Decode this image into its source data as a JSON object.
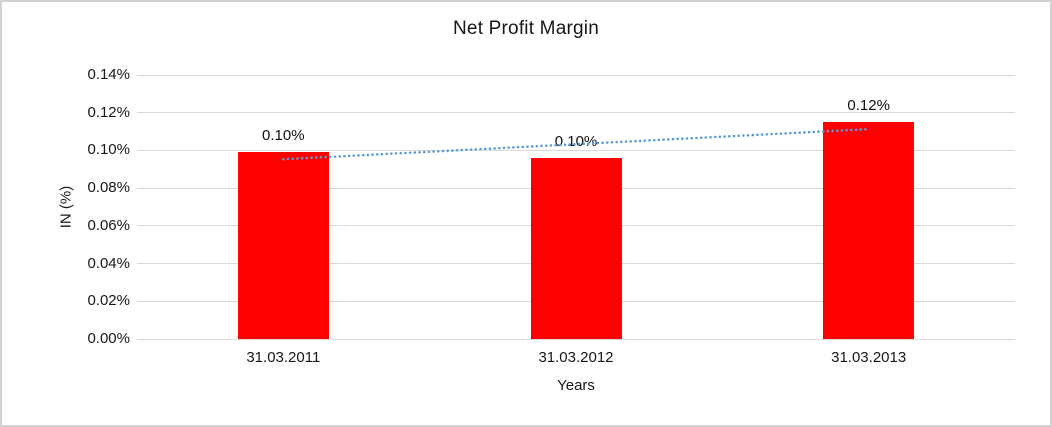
{
  "chart_data": {
    "type": "bar",
    "title": "Net Profit Margin",
    "xlabel": "Years",
    "ylabel": "IN (%)",
    "categories": [
      "31.03.2011",
      "31.03.2012",
      "31.03.2013"
    ],
    "values": [
      0.099,
      0.096,
      0.115
    ],
    "bar_labels": [
      "0.10%",
      "0.10%",
      "0.12%"
    ],
    "ytick_labels": [
      "0.00%",
      "0.02%",
      "0.04%",
      "0.06%",
      "0.08%",
      "0.10%",
      "0.12%",
      "0.14%"
    ],
    "ytick_values": [
      0,
      0.02,
      0.04,
      0.06,
      0.08,
      0.1,
      0.12,
      0.14
    ],
    "ylim": [
      0,
      0.14
    ],
    "grid": "horizontal",
    "legend": "none",
    "bar_color": "#ff0000",
    "gridline_color": "#d9d9d9",
    "text_color": "#171717",
    "trendline": {
      "type": "linear",
      "style": "dotted",
      "color": "#5b9bd5",
      "start_value": 0.0953,
      "end_value": 0.1113
    }
  }
}
